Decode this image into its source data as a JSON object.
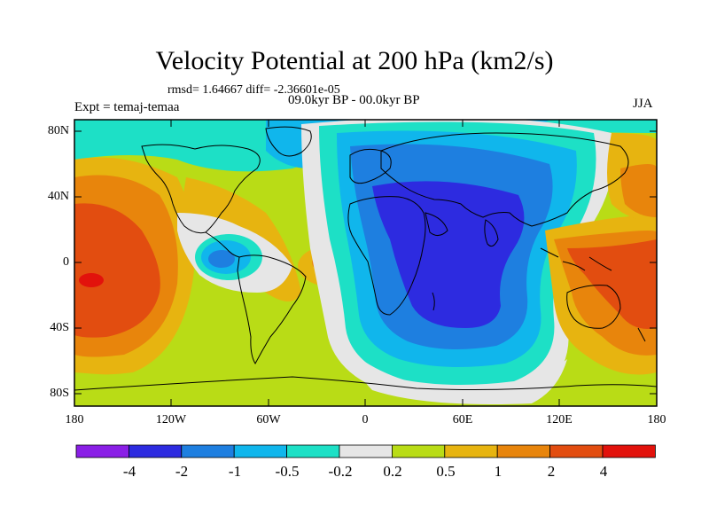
{
  "title": "Velocity Potential at 200 hPa (km2/s)",
  "stats": "rmsd= 1.64667 diff= -2.36601e-05",
  "experiment": "Expt = temaj-temaa",
  "period": "09.0kyr BP - 00.0kyr BP",
  "season": "JJA",
  "axes": {
    "y_labels": [
      "80N",
      "40N",
      "0",
      "40S",
      "80S"
    ],
    "x_labels": [
      "180",
      "120W",
      "60W",
      "0",
      "60E",
      "120E",
      "180"
    ]
  },
  "colorbar": {
    "colors": [
      "#8a1fe6",
      "#2d2be0",
      "#1e7fe0",
      "#10b6ec",
      "#1de0c6",
      "#e6e6e6",
      "#b9dc16",
      "#e7b410",
      "#e8850c",
      "#e24d10",
      "#e2120c"
    ],
    "labels": [
      "-4",
      "-2",
      "-1",
      "-0.5",
      "-0.2",
      "0.2",
      "0.5",
      "1",
      "2",
      "4"
    ]
  },
  "colors": {
    "background": "#ffffff",
    "coastline": "#000000",
    "frame": "#000000"
  }
}
